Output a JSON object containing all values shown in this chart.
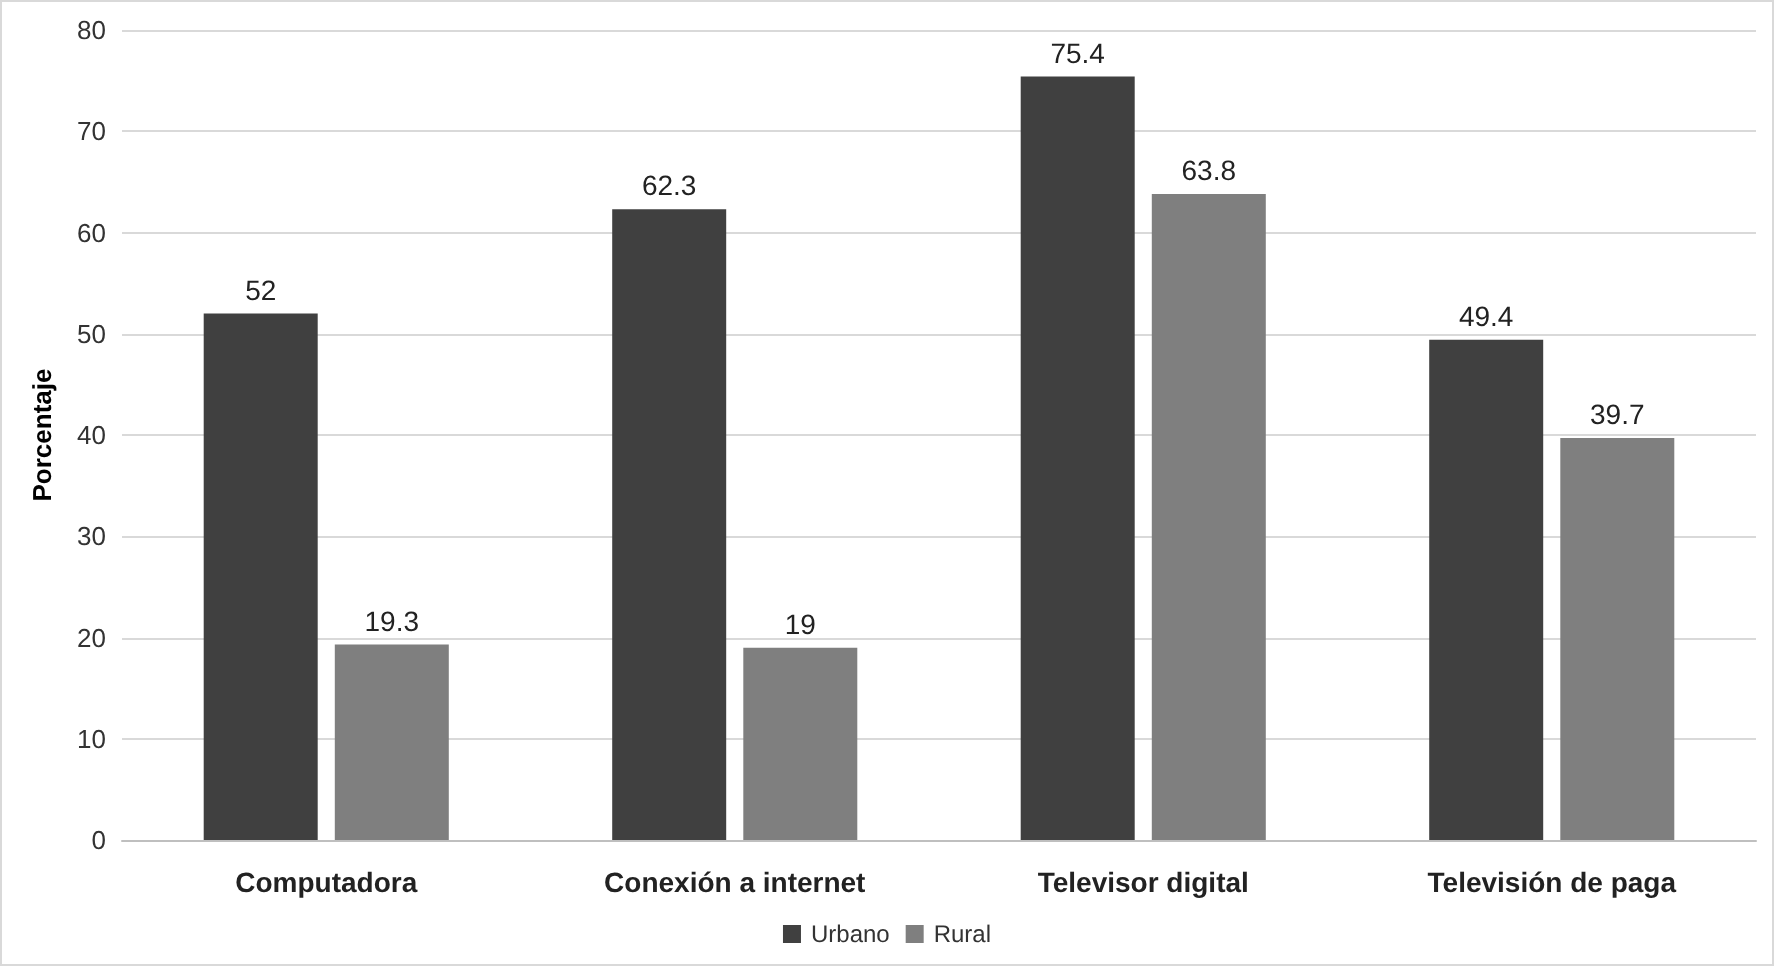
{
  "chart_data": {
    "type": "bar",
    "ylabel": "Porcentaje",
    "categories": [
      "Computadora",
      "Conexión a internet",
      "Televisor digital",
      "Televisión de paga"
    ],
    "series": [
      {
        "name": "Urbano",
        "color": "#404040",
        "values": [
          52,
          62.3,
          75.4,
          49.4
        ]
      },
      {
        "name": "Rural",
        "color": "#7f7f7f",
        "values": [
          19.3,
          19,
          63.8,
          39.7
        ]
      }
    ],
    "ylim": [
      0,
      80
    ],
    "yticks": [
      0,
      10,
      20,
      30,
      40,
      50,
      60,
      70,
      80
    ],
    "grid": "y",
    "legend": "bottom",
    "data_labels": true
  }
}
